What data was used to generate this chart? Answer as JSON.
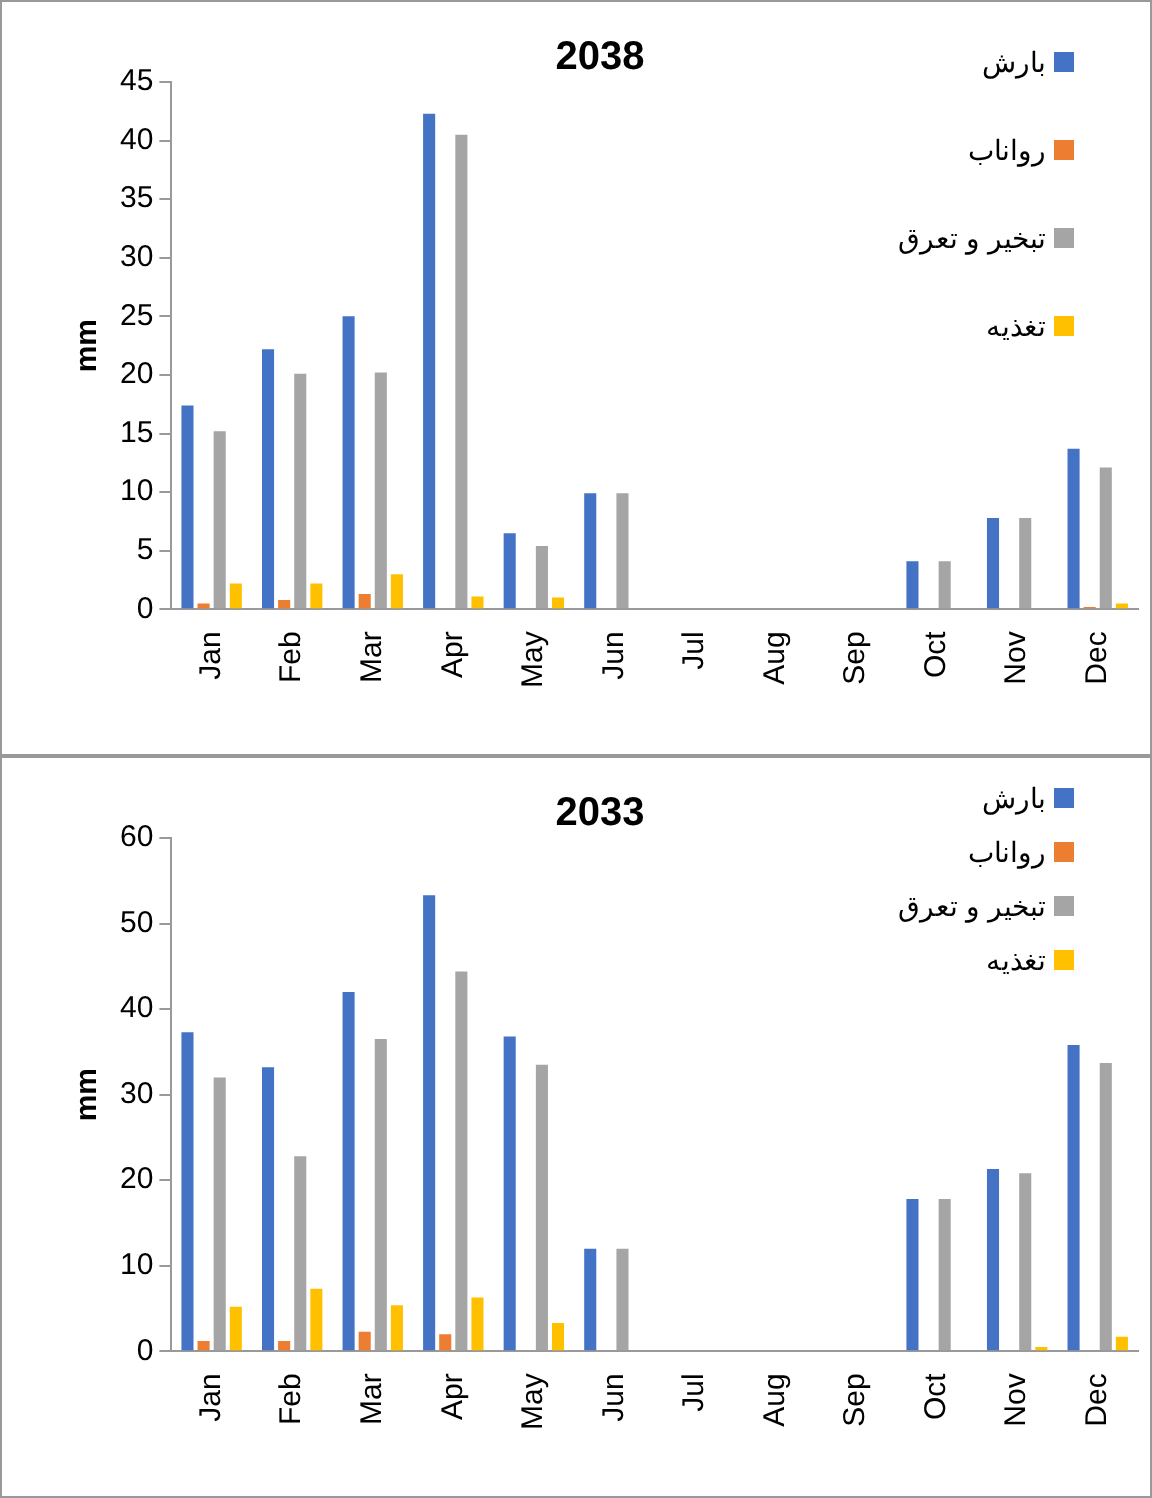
{
  "chart_data": [
    {
      "type": "bar",
      "title": "2038",
      "ylabel": "mm",
      "categories": [
        "Jan",
        "Feb",
        "Mar",
        "Apr",
        "May",
        "Jun",
        "Jul",
        "Aug",
        "Sep",
        "Oct",
        "Nov",
        "Dec"
      ],
      "series": [
        {
          "name": "بارش",
          "color": "#4472c4",
          "values": [
            17.4,
            22.2,
            25,
            42.3,
            6.5,
            9.9,
            0,
            0,
            0,
            4.1,
            7.8,
            13.7
          ]
        },
        {
          "name": "رواناب",
          "color": "#ed7d31",
          "values": [
            0.5,
            0.8,
            1.3,
            0,
            0,
            0,
            0,
            0,
            0,
            0,
            0,
            0.2
          ]
        },
        {
          "name": "تبخیر و تعرق",
          "color": "#a5a5a5",
          "values": [
            15.2,
            20.1,
            20.2,
            40.5,
            5.4,
            9.9,
            0,
            0,
            0,
            4.1,
            7.8,
            12.1
          ]
        },
        {
          "name": "تغذیه",
          "color": "#ffc000",
          "values": [
            2.2,
            2.2,
            3,
            1.1,
            1,
            0,
            0,
            0,
            0,
            0,
            0,
            0.5
          ]
        }
      ],
      "ylim": [
        0,
        45
      ],
      "yticks": [
        0,
        5,
        10,
        15,
        20,
        25,
        30,
        35,
        40,
        45
      ],
      "grid": false,
      "legend": "top right"
    },
    {
      "type": "bar",
      "title": "2033",
      "ylabel": "mm",
      "categories": [
        "Jan",
        "Feb",
        "Mar",
        "Apr",
        "May",
        "Jun",
        "Jul",
        "Aug",
        "Sep",
        "Oct",
        "Nov",
        "Dec"
      ],
      "series": [
        {
          "name": "بارش",
          "color": "#4472c4",
          "values": [
            37.3,
            33.2,
            42,
            53.3,
            36.8,
            12,
            0,
            0,
            0,
            17.8,
            21.3,
            35.8
          ]
        },
        {
          "name": "رواناب",
          "color": "#ed7d31",
          "values": [
            1.2,
            1.2,
            2.3,
            2,
            0,
            0,
            0,
            0,
            0,
            0,
            0,
            0
          ]
        },
        {
          "name": "تبخیر و تعرق",
          "color": "#a5a5a5",
          "values": [
            32,
            22.8,
            36.5,
            44.4,
            33.5,
            12,
            0,
            0,
            0,
            17.8,
            20.8,
            33.7
          ]
        },
        {
          "name": "تغذیه",
          "color": "#ffc000",
          "values": [
            5.2,
            7.3,
            5.4,
            6.3,
            3.3,
            0,
            0,
            0,
            0,
            0,
            0.5,
            1.7
          ]
        }
      ],
      "ylim": [
        0,
        60
      ],
      "yticks": [
        0,
        10,
        20,
        30,
        40,
        50,
        60
      ],
      "grid": false,
      "legend": "top right"
    }
  ]
}
